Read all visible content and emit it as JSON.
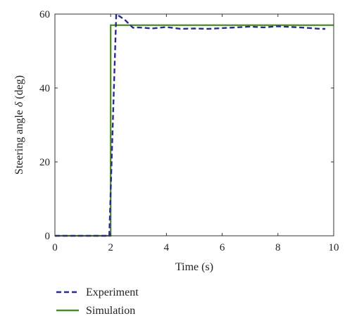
{
  "chart_data": {
    "type": "line",
    "xlabel": "Time (s)",
    "ylabel_prefix": "Steering angle ",
    "ylabel_symbol": "δ",
    "ylabel_suffix": " (deg)",
    "xlim": [
      0,
      10
    ],
    "ylim": [
      0,
      60
    ],
    "xticks": [
      0,
      2,
      4,
      6,
      8,
      10
    ],
    "yticks": [
      0,
      20,
      40,
      60
    ],
    "grid": false,
    "legend_position": "bottom-left",
    "series": [
      {
        "name": "Experiment",
        "color": "#2b2b8c",
        "style": "dashed",
        "x": [
          0,
          1.95,
          2.2,
          2.5,
          2.8,
          3.0,
          3.5,
          4.0,
          4.5,
          5.0,
          5.5,
          6.0,
          6.5,
          7.0,
          7.5,
          8.0,
          8.5,
          9.0,
          9.5,
          9.7
        ],
        "y": [
          0,
          0,
          60,
          58.5,
          56.3,
          56.4,
          56.1,
          56.5,
          56.0,
          56.1,
          56.0,
          56.2,
          56.4,
          56.6,
          56.4,
          56.7,
          56.5,
          56.3,
          56.0,
          56.0
        ]
      },
      {
        "name": "Simulation",
        "color": "#4b8c2a",
        "style": "solid",
        "x": [
          0,
          2.0,
          2.0,
          10
        ],
        "y": [
          0,
          0,
          57,
          57
        ]
      }
    ]
  }
}
